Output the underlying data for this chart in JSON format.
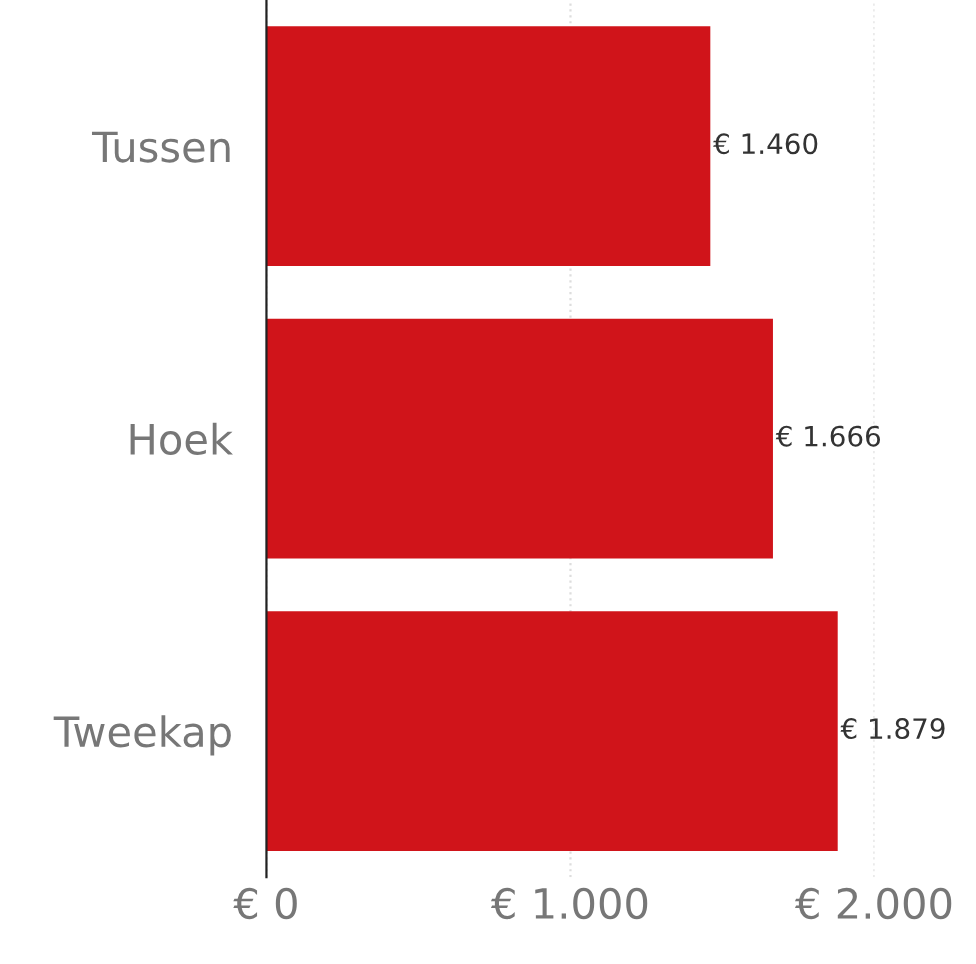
{
  "chart_data": {
    "type": "bar",
    "orientation": "horizontal",
    "categories": [
      "Tussen",
      "Hoek",
      "Tweekap"
    ],
    "values": [
      1460,
      1666,
      1879
    ],
    "color": "#d0141a",
    "value_labels": [
      "€ 1.460",
      "€ 1.666",
      "€ 1.879"
    ],
    "xlim": [
      0,
      2000
    ],
    "xticks": [
      {
        "value": 0,
        "label": "€ 0"
      },
      {
        "value": 1000,
        "label": "€ 1.000"
      },
      {
        "value": 2000,
        "label": "€ 2.000"
      }
    ],
    "grid": "x",
    "legend": false
  }
}
